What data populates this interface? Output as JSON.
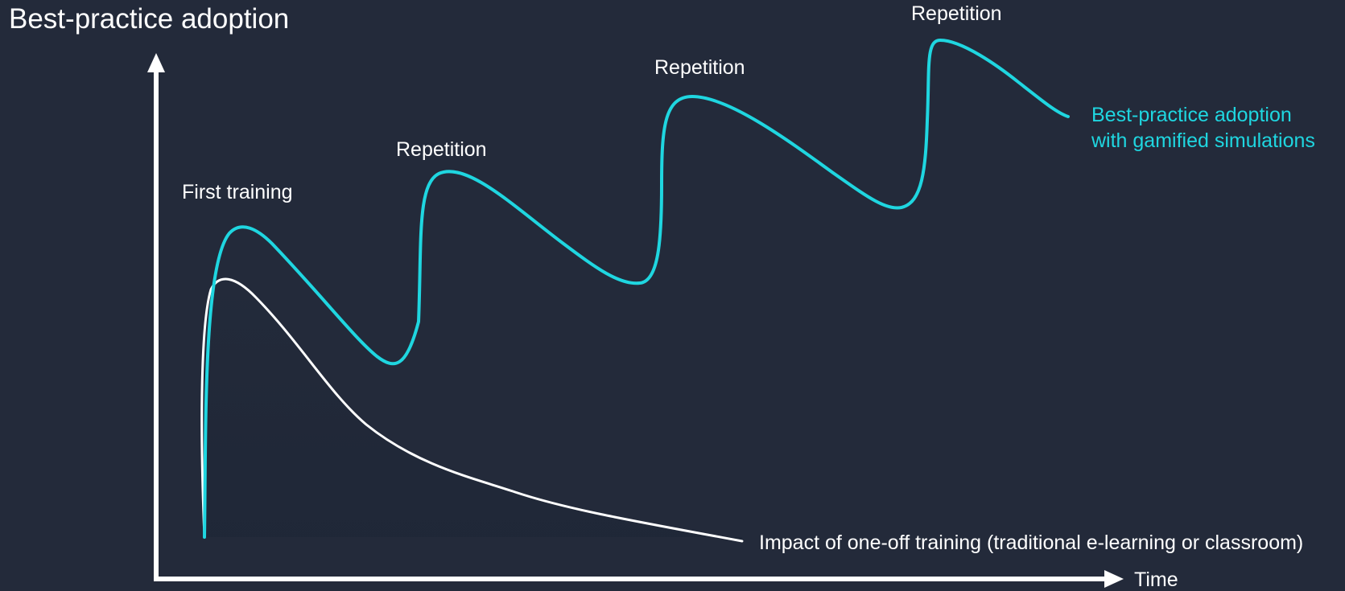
{
  "title": "Best-practice adoption",
  "x_axis_label": "Time",
  "annotations": {
    "first_training": "First training",
    "repetition_1": "Repetition",
    "repetition_2": "Repetition",
    "repetition_3": "Repetition"
  },
  "series": {
    "gamified_label_line1": "Best-practice adoption",
    "gamified_label_line2": "with gamified simulations",
    "one_off_label": "Impact of one-off training (traditional e-learning or classroom)"
  },
  "colors": {
    "background": "#232a3a",
    "axis": "#ffffff",
    "gamified_curve": "#1fd6e0",
    "one_off_curve": "#ffffff",
    "gamified_text": "#1fd6e0"
  }
}
